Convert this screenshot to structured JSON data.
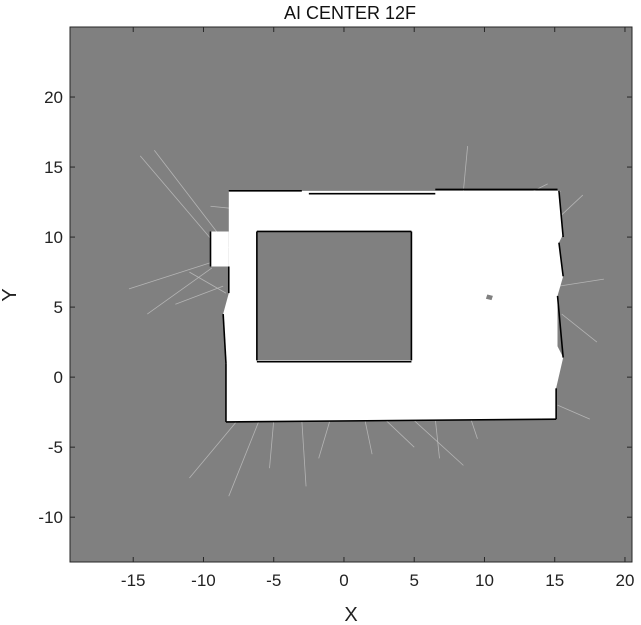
{
  "title": "AI CENTER 12F",
  "xlabel": "X",
  "ylabel": "Y",
  "xlim": [
    -19.5,
    20.5
  ],
  "ylim": [
    -13.2,
    25
  ],
  "xticks": [
    -15,
    -10,
    -5,
    0,
    5,
    10,
    15,
    20
  ],
  "yticks": [
    -10,
    -5,
    0,
    5,
    10,
    15,
    20
  ],
  "colors": {
    "unknown": "#808080",
    "free": "#ffffff",
    "occupied": "#000000",
    "ray": "#bdbdbd",
    "axis": "#262626"
  },
  "map": {
    "free_regions": [
      [
        [
          -8.2,
          13.3
        ],
        [
          15.4,
          13.3
        ],
        [
          15.3,
          12.8
        ],
        [
          15.6,
          10.2
        ],
        [
          15.3,
          9.6
        ],
        [
          15.6,
          7.2
        ],
        [
          15.2,
          5.8
        ],
        [
          15.2,
          2.2
        ],
        [
          15.6,
          1.4
        ],
        [
          15.1,
          -0.8
        ],
        [
          15.1,
          -3.0
        ],
        [
          -8.4,
          -3.2
        ],
        [
          -8.4,
          1.0
        ],
        [
          -8.6,
          4.5
        ],
        [
          -8.2,
          6.0
        ],
        [
          -8.2,
          13.3
        ]
      ],
      [
        [
          -9.5,
          10.4
        ],
        [
          -8.2,
          10.4
        ],
        [
          -8.2,
          7.9
        ],
        [
          -9.5,
          7.9
        ]
      ]
    ],
    "unknown_regions": [
      [
        [
          -6.2,
          10.4
        ],
        [
          4.8,
          10.4
        ],
        [
          4.8,
          1.2
        ],
        [
          -6.2,
          1.2
        ]
      ],
      [
        [
          10.2,
          5.9
        ],
        [
          10.6,
          5.8
        ],
        [
          10.5,
          5.5
        ],
        [
          10.1,
          5.6
        ]
      ]
    ],
    "walls": [
      [
        [
          -8.2,
          13.3
        ],
        [
          -3.0,
          13.3
        ]
      ],
      [
        [
          -2.5,
          13.1
        ],
        [
          6.5,
          13.1
        ]
      ],
      [
        [
          6.5,
          13.4
        ],
        [
          15.2,
          13.4
        ]
      ],
      [
        [
          15.3,
          13.3
        ],
        [
          15.6,
          10.0
        ]
      ],
      [
        [
          15.3,
          9.6
        ],
        [
          15.6,
          7.2
        ]
      ],
      [
        [
          15.2,
          5.8
        ],
        [
          15.6,
          1.4
        ]
      ],
      [
        [
          15.1,
          -0.8
        ],
        [
          15.1,
          -3.0
        ]
      ],
      [
        [
          15.1,
          -3.0
        ],
        [
          -8.4,
          -3.2
        ]
      ],
      [
        [
          -8.4,
          -3.2
        ],
        [
          -8.4,
          1.0
        ]
      ],
      [
        [
          -8.4,
          1.0
        ],
        [
          -8.6,
          4.5
        ]
      ],
      [
        [
          -8.2,
          6.0
        ],
        [
          -8.2,
          7.9
        ]
      ],
      [
        [
          -9.5,
          10.4
        ],
        [
          -9.5,
          7.9
        ]
      ],
      [
        [
          -6.2,
          10.4
        ],
        [
          4.8,
          10.4
        ]
      ],
      [
        [
          4.8,
          10.4
        ],
        [
          4.8,
          1.2
        ]
      ],
      [
        [
          4.8,
          1.1
        ],
        [
          -6.2,
          1.1
        ]
      ],
      [
        [
          -6.2,
          1.2
        ],
        [
          -6.2,
          10.4
        ]
      ]
    ],
    "rays": [
      [
        [
          -8.3,
          8.5
        ],
        [
          -14.5,
          15.8
        ]
      ],
      [
        [
          -8.0,
          9.0
        ],
        [
          -13.5,
          16.2
        ]
      ],
      [
        [
          -9.4,
          8.2
        ],
        [
          -15.3,
          6.3
        ]
      ],
      [
        [
          -9.4,
          7.8
        ],
        [
          -14.0,
          4.5
        ]
      ],
      [
        [
          -8.6,
          6.5
        ],
        [
          -12.0,
          5.2
        ]
      ],
      [
        [
          -8.4,
          6.0
        ],
        [
          -11.0,
          7.5
        ]
      ],
      [
        [
          -7.5,
          -3.0
        ],
        [
          -11.0,
          -7.2
        ]
      ],
      [
        [
          -6.0,
          -3.0
        ],
        [
          -8.2,
          -8.5
        ]
      ],
      [
        [
          -5.0,
          -3.1
        ],
        [
          -5.3,
          -6.5
        ]
      ],
      [
        [
          -3.0,
          -3.1
        ],
        [
          -2.7,
          -7.8
        ]
      ],
      [
        [
          -1.0,
          -3.1
        ],
        [
          -1.8,
          -5.8
        ]
      ],
      [
        [
          1.5,
          -3.1
        ],
        [
          2.0,
          -5.5
        ]
      ],
      [
        [
          3.0,
          -3.1
        ],
        [
          5.0,
          -5.0
        ]
      ],
      [
        [
          5.0,
          -3.1
        ],
        [
          8.5,
          -6.3
        ]
      ],
      [
        [
          6.5,
          -3.0
        ],
        [
          6.8,
          -5.8
        ]
      ],
      [
        [
          9.0,
          -2.9
        ],
        [
          9.5,
          -4.4
        ]
      ],
      [
        [
          -2.0,
          1.2
        ],
        [
          -1.0,
          5.0
        ]
      ],
      [
        [
          0.5,
          1.2
        ],
        [
          2.5,
          4.0
        ]
      ],
      [
        [
          -4.0,
          1.2
        ],
        [
          -6.0,
          4.5
        ]
      ],
      [
        [
          15.3,
          6.5
        ],
        [
          18.5,
          7.0
        ]
      ],
      [
        [
          15.5,
          4.5
        ],
        [
          18.0,
          2.5
        ]
      ],
      [
        [
          15.2,
          -2.0
        ],
        [
          17.5,
          -3.0
        ]
      ],
      [
        [
          15.4,
          11.5
        ],
        [
          17.0,
          13.0
        ]
      ],
      [
        [
          8.5,
          13.3
        ],
        [
          8.8,
          16.5
        ]
      ],
      [
        [
          13.5,
          13.3
        ],
        [
          14.5,
          13.8
        ]
      ],
      [
        [
          -7.5,
          12.0
        ],
        [
          -9.5,
          12.2
        ]
      ]
    ]
  }
}
